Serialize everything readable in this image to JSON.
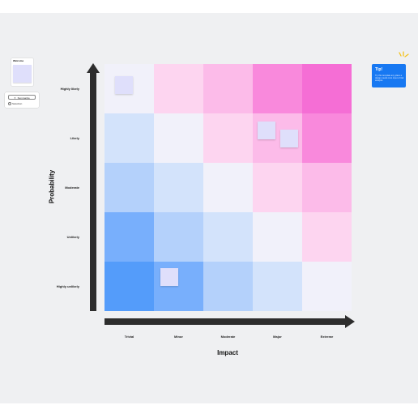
{
  "diagram": {
    "y_title": "Probability",
    "x_title": "Impact",
    "rows": [
      "Highly likely",
      "Likely",
      "Moderate",
      "Unlikely",
      "Highly unlikely"
    ],
    "columns": [
      "Trivial",
      "Minor",
      "Moderate",
      "Major",
      "Extreme"
    ],
    "cell_colors": [
      [
        "#f1f1fa",
        "#fdd5f0",
        "#fcbbe9",
        "#f989dc",
        "#f56ed5"
      ],
      [
        "#d3e3fb",
        "#f1f1fa",
        "#fdd5f0",
        "#fcbbe9",
        "#f989dc"
      ],
      [
        "#b4d1fb",
        "#d3e3fb",
        "#f1f1fa",
        "#fdd5f0",
        "#fcbbe9"
      ],
      [
        "#78affc",
        "#b4d1fb",
        "#d3e3fb",
        "#f1f1fa",
        "#fdd5f0"
      ],
      [
        "#549cfa",
        "#78affc",
        "#b4d1fb",
        "#d3e3fb",
        "#f1f1fa"
      ]
    ],
    "axis_color": "#2d2d2d"
  },
  "welcome": {
    "title": "Welcome"
  },
  "tools": {
    "button_label": "Summarize",
    "option_label": "Selection"
  },
  "tip": {
    "title": "Tip!",
    "text": "Try this template any place a design needs zero input of risk analysis",
    "color": "#1778f2"
  }
}
